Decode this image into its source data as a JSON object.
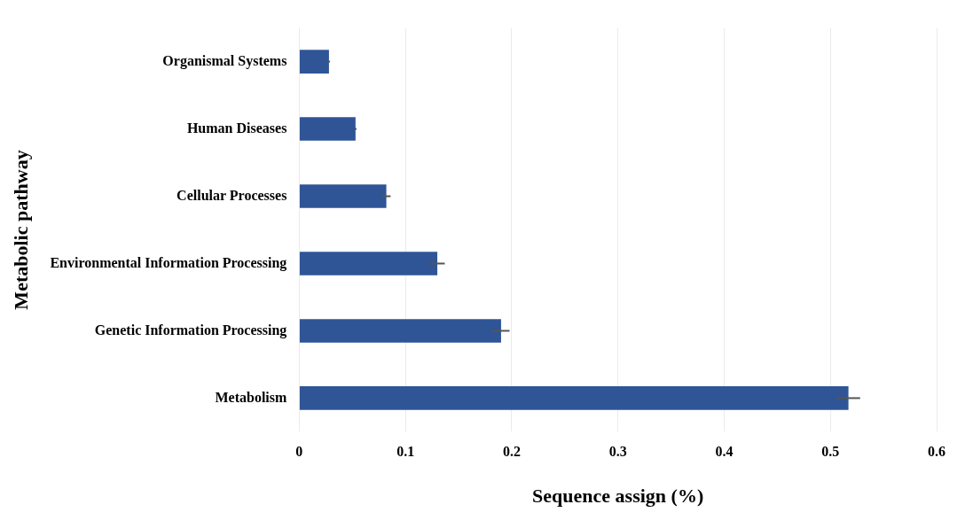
{
  "chart_data": {
    "type": "bar",
    "orientation": "horizontal",
    "xlabel": "Sequence assign (%)",
    "ylabel": "Metabolic pathway",
    "categories": [
      "Organismal Systems",
      "Human Diseases",
      "Cellular Processes",
      "Environmental Information Processing",
      "Genetic Information Processing",
      "Metabolism"
    ],
    "values": [
      0.028,
      0.053,
      0.082,
      0.13,
      0.19,
      0.517
    ],
    "errors": [
      0.001,
      0.001,
      0.004,
      0.007,
      0.008,
      0.011
    ],
    "color": "#2f5597",
    "xlim": [
      0,
      0.6
    ],
    "xticks": [
      0,
      0.1,
      0.2,
      0.3,
      0.4,
      0.5,
      0.6
    ],
    "grid": "x",
    "legend": false
  }
}
